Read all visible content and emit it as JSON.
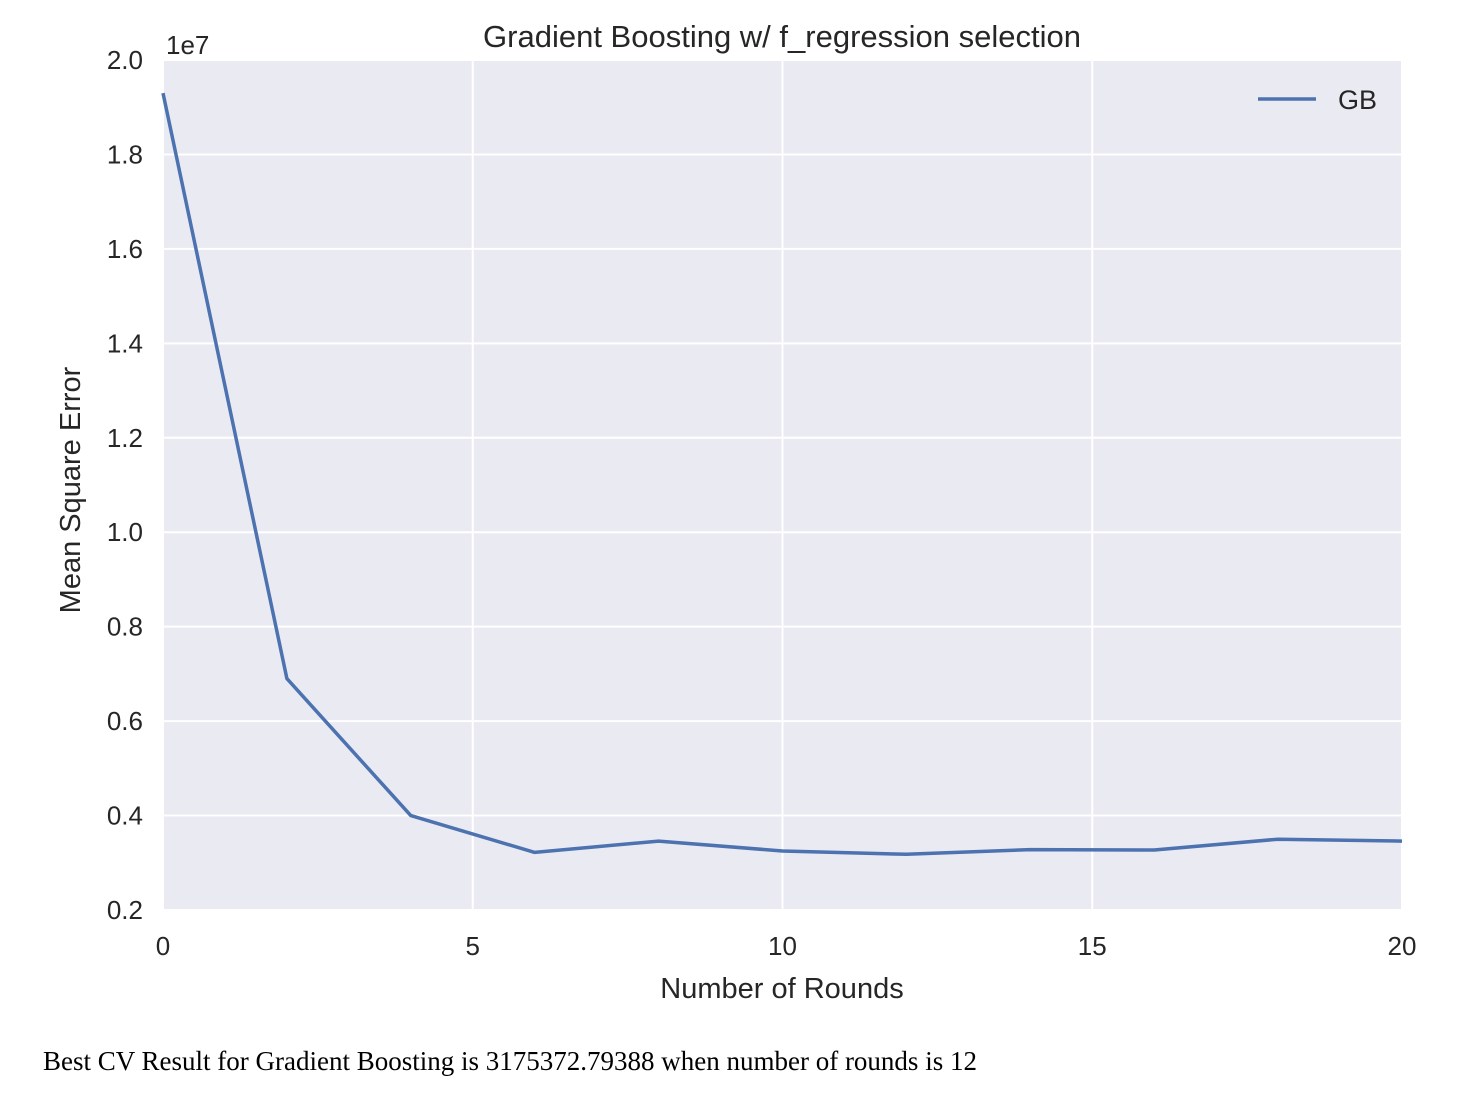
{
  "chart_data": {
    "type": "line",
    "title": "Gradient Boosting w/ f_regression selection",
    "xlabel": "Number of Rounds",
    "ylabel": "Mean Square Error",
    "y_offset_label": "1e7",
    "xlim": [
      0,
      20
    ],
    "ylim": [
      0.2,
      2.0
    ],
    "x_ticks": [
      "0",
      "5",
      "10",
      "15",
      "20"
    ],
    "y_ticks": [
      "0.2",
      "0.4",
      "0.6",
      "0.8",
      "1.0",
      "1.2",
      "1.4",
      "1.6",
      "1.8",
      "2.0"
    ],
    "grid": true,
    "legend_position": "top-right",
    "series": [
      {
        "name": "GB",
        "color": "#4c72b0",
        "x": [
          0,
          2,
          4,
          6,
          8,
          10,
          12,
          14,
          16,
          18,
          20
        ],
        "y": [
          1.93,
          0.69,
          0.4,
          0.322,
          0.346,
          0.325,
          0.318,
          0.328,
          0.327,
          0.35,
          0.346
        ]
      }
    ]
  },
  "colors": {
    "plot_background": "#eaeaf2",
    "grid": "#ffffff",
    "text": "#262626"
  },
  "caption": "Best CV Result for Gradient Boosting is 3175372.79388 when number of rounds is 12"
}
